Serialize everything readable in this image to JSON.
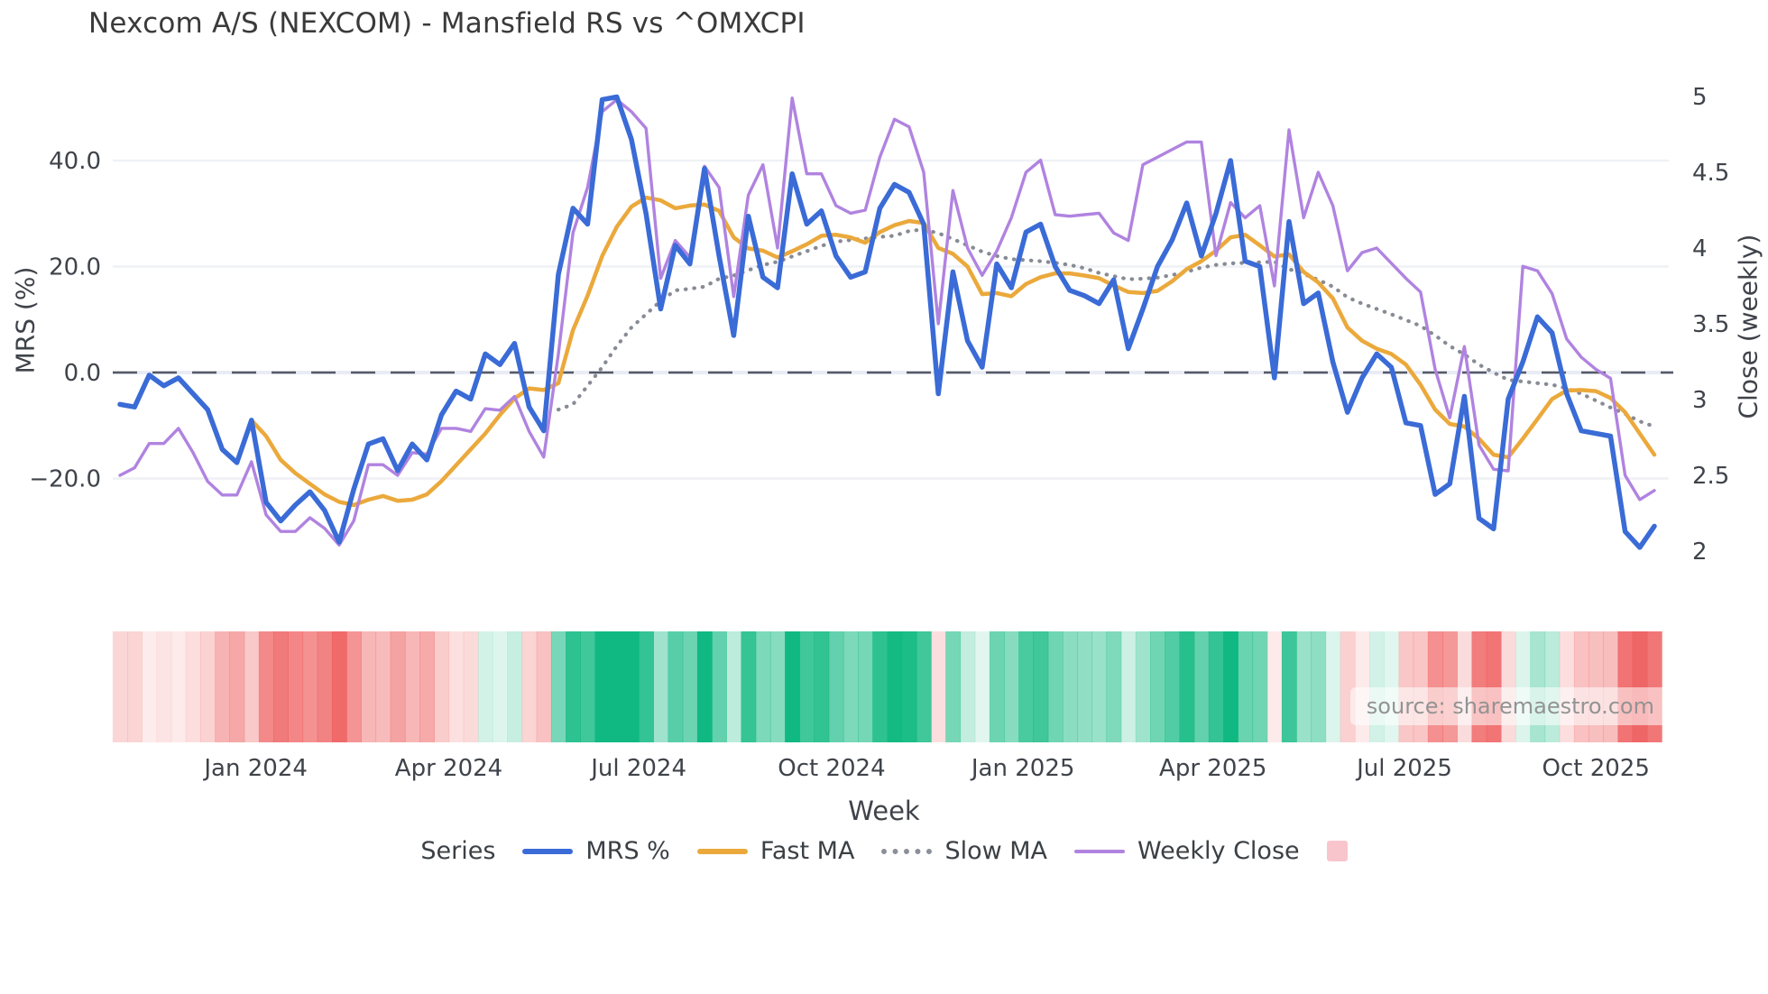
{
  "title": "Nexcom A/S (NEXCOM) - Mansfield RS vs ^OMXCPI",
  "watermark": "source: sharemaestro.com",
  "axes": {
    "left": {
      "title": "MRS (%)",
      "ticks": [
        {
          "label": "40.0",
          "value": 40
        },
        {
          "label": "20.0",
          "value": 20
        },
        {
          "label": "0.0",
          "value": 0
        },
        {
          "label": "−20.0",
          "value": -20
        }
      ]
    },
    "right": {
      "title": "Close (weekly)",
      "ticks": [
        {
          "label": "5",
          "value": 5
        },
        {
          "label": "4.5",
          "value": 4.5
        },
        {
          "label": "4",
          "value": 4
        },
        {
          "label": "3.5",
          "value": 3.5
        },
        {
          "label": "3",
          "value": 3
        },
        {
          "label": "2.5",
          "value": 2.5
        },
        {
          "label": "2",
          "value": 2
        }
      ]
    },
    "x": {
      "title": "Week",
      "ticks": [
        {
          "label": "Jan 2024",
          "week": 9.3
        },
        {
          "label": "Apr 2024",
          "week": 22.5
        },
        {
          "label": "Jul 2024",
          "week": 35.5
        },
        {
          "label": "Oct 2024",
          "week": 48.7
        },
        {
          "label": "Jan 2025",
          "week": 61.8
        },
        {
          "label": "Apr 2025",
          "week": 74.8
        },
        {
          "label": "Jul 2025",
          "week": 87.9
        },
        {
          "label": "Oct 2025",
          "week": 101
        }
      ]
    }
  },
  "legend": {
    "title": "Series",
    "items": [
      {
        "label": "MRS %",
        "swatch": "line",
        "color": "#3a6bd6"
      },
      {
        "label": "Fast MA",
        "swatch": "line",
        "color": "#eba93c"
      },
      {
        "label": "Slow MA",
        "swatch": "dotted",
        "color": "#8b8f98"
      },
      {
        "label": "Weekly Close",
        "swatch": "line",
        "color": "#b083e0"
      },
      {
        "label": "",
        "swatch": "square",
        "color": "#f9c5cc"
      }
    ]
  },
  "colors": {
    "mrs_line": "#3a6bd6",
    "fast_ma_line": "#eba93c",
    "slow_ma_line": "#878b94",
    "weekly_close_line": "#b083e0",
    "zero_dash": "#555a66",
    "gridline": "#eff1f5",
    "tick_text": "#3f434a",
    "heat_positive": "#10b981",
    "heat_negative": "#ee5a5a"
  },
  "chart_data": {
    "type": "line",
    "x_unit": "week_index",
    "n_points": 106,
    "xlabel": "Week",
    "ylabel_left": "MRS (%)",
    "ylabel_right": "Close (weekly)",
    "ylim_left": [
      -39,
      57
    ],
    "ylim_right": [
      1.8,
      5.2
    ],
    "zero_line": {
      "axis": "left",
      "value": 0,
      "style": "dashed"
    },
    "series": [
      {
        "name": "MRS %",
        "axis": "left",
        "style": "solid",
        "values": [
          -6,
          -6.5,
          -0.5,
          -2.5,
          -1,
          -4,
          -7,
          -14.5,
          -17,
          -9,
          -24.5,
          -28,
          -25,
          -22.5,
          -26,
          -32,
          -22,
          -13.5,
          -12.5,
          -18.5,
          -13.5,
          -16.5,
          -8,
          -3.5,
          -5,
          3.5,
          1.5,
          5.5,
          -6.5,
          -11,
          18.5,
          31,
          28,
          51.5,
          52,
          44,
          30,
          12,
          24,
          20.5,
          38.5,
          22,
          7,
          29.5,
          18,
          16,
          37.5,
          28,
          30.5,
          22,
          18,
          19,
          31,
          35.5,
          34,
          28,
          -4,
          19,
          6,
          1,
          20.5,
          16,
          26.5,
          28,
          20,
          15.5,
          14.5,
          13,
          17.5,
          4.5,
          12,
          20,
          25,
          32,
          22,
          30,
          40,
          21,
          20,
          -1,
          28.5,
          13,
          15,
          2,
          -7.5,
          -1,
          3.5,
          1,
          -9.5,
          -10,
          -23,
          -21,
          -4.5,
          -27.5,
          -29.5,
          -5,
          2,
          10.5,
          7.5,
          -4,
          -11,
          -11.5,
          -12,
          -30,
          -33,
          -29
        ]
      },
      {
        "name": "Fast MA",
        "axis": "left",
        "style": "solid",
        "values": [
          null,
          null,
          null,
          null,
          null,
          null,
          null,
          null,
          null,
          -9,
          -12,
          -16.5,
          -19,
          -21,
          -23,
          -24.4,
          -25,
          -24,
          -23.3,
          -24.2,
          -24,
          -23,
          -20.5,
          -17.5,
          -14.5,
          -11.5,
          -8,
          -4.9,
          -3,
          -3.3,
          -2,
          8,
          14.5,
          22,
          27.5,
          31.3,
          33,
          32.5,
          31,
          31.5,
          31.7,
          30.5,
          25.5,
          23.4,
          23,
          21.7,
          22.9,
          24.2,
          25.8,
          26,
          25.5,
          24.5,
          26.5,
          27.8,
          28.6,
          28.2,
          23.5,
          22.4,
          20,
          14.8,
          15,
          14.4,
          16.7,
          18,
          18.7,
          18.7,
          18.3,
          17.8,
          16.4,
          15.2,
          15,
          15.4,
          17.2,
          19.5,
          21,
          23,
          25.5,
          26,
          24,
          21.9,
          22.3,
          19,
          17,
          14,
          8.5,
          6,
          4.5,
          3.5,
          1.5,
          -2.3,
          -7,
          -9.7,
          -10.2,
          -12.5,
          -15.5,
          -16,
          -12.5,
          -8.8,
          -5,
          -3.4,
          -3.3,
          -3.5,
          -4.8,
          -7.5,
          -11.5,
          -15.5
        ]
      },
      {
        "name": "Slow MA",
        "axis": "left",
        "style": "dotted",
        "values": [
          null,
          null,
          null,
          null,
          null,
          null,
          null,
          null,
          null,
          null,
          null,
          null,
          null,
          null,
          null,
          null,
          null,
          null,
          null,
          null,
          null,
          null,
          null,
          null,
          null,
          null,
          null,
          null,
          null,
          null,
          -7,
          -6,
          -2.5,
          1,
          5,
          8.5,
          11,
          13.5,
          15.5,
          15.8,
          16.2,
          17.7,
          18.3,
          19.3,
          20.3,
          20.9,
          21.9,
          22.9,
          23.9,
          24.7,
          25,
          25.3,
          25.6,
          25.8,
          26.7,
          27,
          26.3,
          25.2,
          24,
          22.8,
          22,
          21.4,
          21.2,
          21,
          20.7,
          20.3,
          19.7,
          18.8,
          18.2,
          17.6,
          17.7,
          17.9,
          18.4,
          19,
          19.8,
          20.3,
          20.6,
          20.7,
          20.8,
          20.9,
          19.5,
          18.6,
          17.5,
          16.2,
          14.2,
          13,
          12,
          11,
          9.9,
          8.8,
          7,
          5,
          3.4,
          1.5,
          0,
          -1.4,
          -1.7,
          -2,
          -2.3,
          -3,
          -4,
          -5.3,
          -6.6,
          -7.8,
          -9.2,
          -10.2
        ]
      },
      {
        "name": "Weekly Close",
        "axis": "right",
        "style": "solid",
        "values": [
          2.5,
          2.55,
          2.71,
          2.71,
          2.81,
          2.65,
          2.46,
          2.37,
          2.37,
          2.59,
          2.24,
          2.13,
          2.13,
          2.22,
          2.15,
          2.04,
          2.2,
          2.57,
          2.57,
          2.5,
          2.65,
          2.64,
          2.81,
          2.81,
          2.79,
          2.94,
          2.93,
          3.02,
          2.79,
          2.62,
          3.3,
          4.1,
          4.4,
          4.9,
          4.98,
          4.9,
          4.79,
          3.8,
          4.05,
          3.94,
          4.54,
          4.4,
          3.68,
          4.35,
          4.55,
          4.0,
          4.99,
          4.49,
          4.49,
          4.28,
          4.23,
          4.25,
          4.6,
          4.85,
          4.8,
          4.5,
          3.5,
          4.38,
          4.0,
          3.82,
          3.98,
          4.2,
          4.5,
          4.58,
          4.22,
          4.21,
          4.22,
          4.23,
          4.1,
          4.05,
          4.55,
          4.6,
          4.65,
          4.7,
          4.7,
          3.95,
          4.3,
          4.2,
          4.28,
          3.75,
          4.78,
          4.2,
          4.5,
          4.28,
          3.85,
          3.97,
          4.0,
          3.9,
          3.8,
          3.71,
          3.2,
          2.88,
          3.35,
          2.7,
          2.54,
          2.53,
          3.88,
          3.85,
          3.7,
          3.4,
          3.28,
          3.2,
          3.14,
          2.5,
          2.34,
          2.4
        ]
      }
    ],
    "heatmap_strip": {
      "description": "weekly cells colored by MRS % sign and magnitude",
      "source_series": "MRS %",
      "positive_color": "#10b981",
      "negative_color": "#ee5a5a"
    }
  }
}
